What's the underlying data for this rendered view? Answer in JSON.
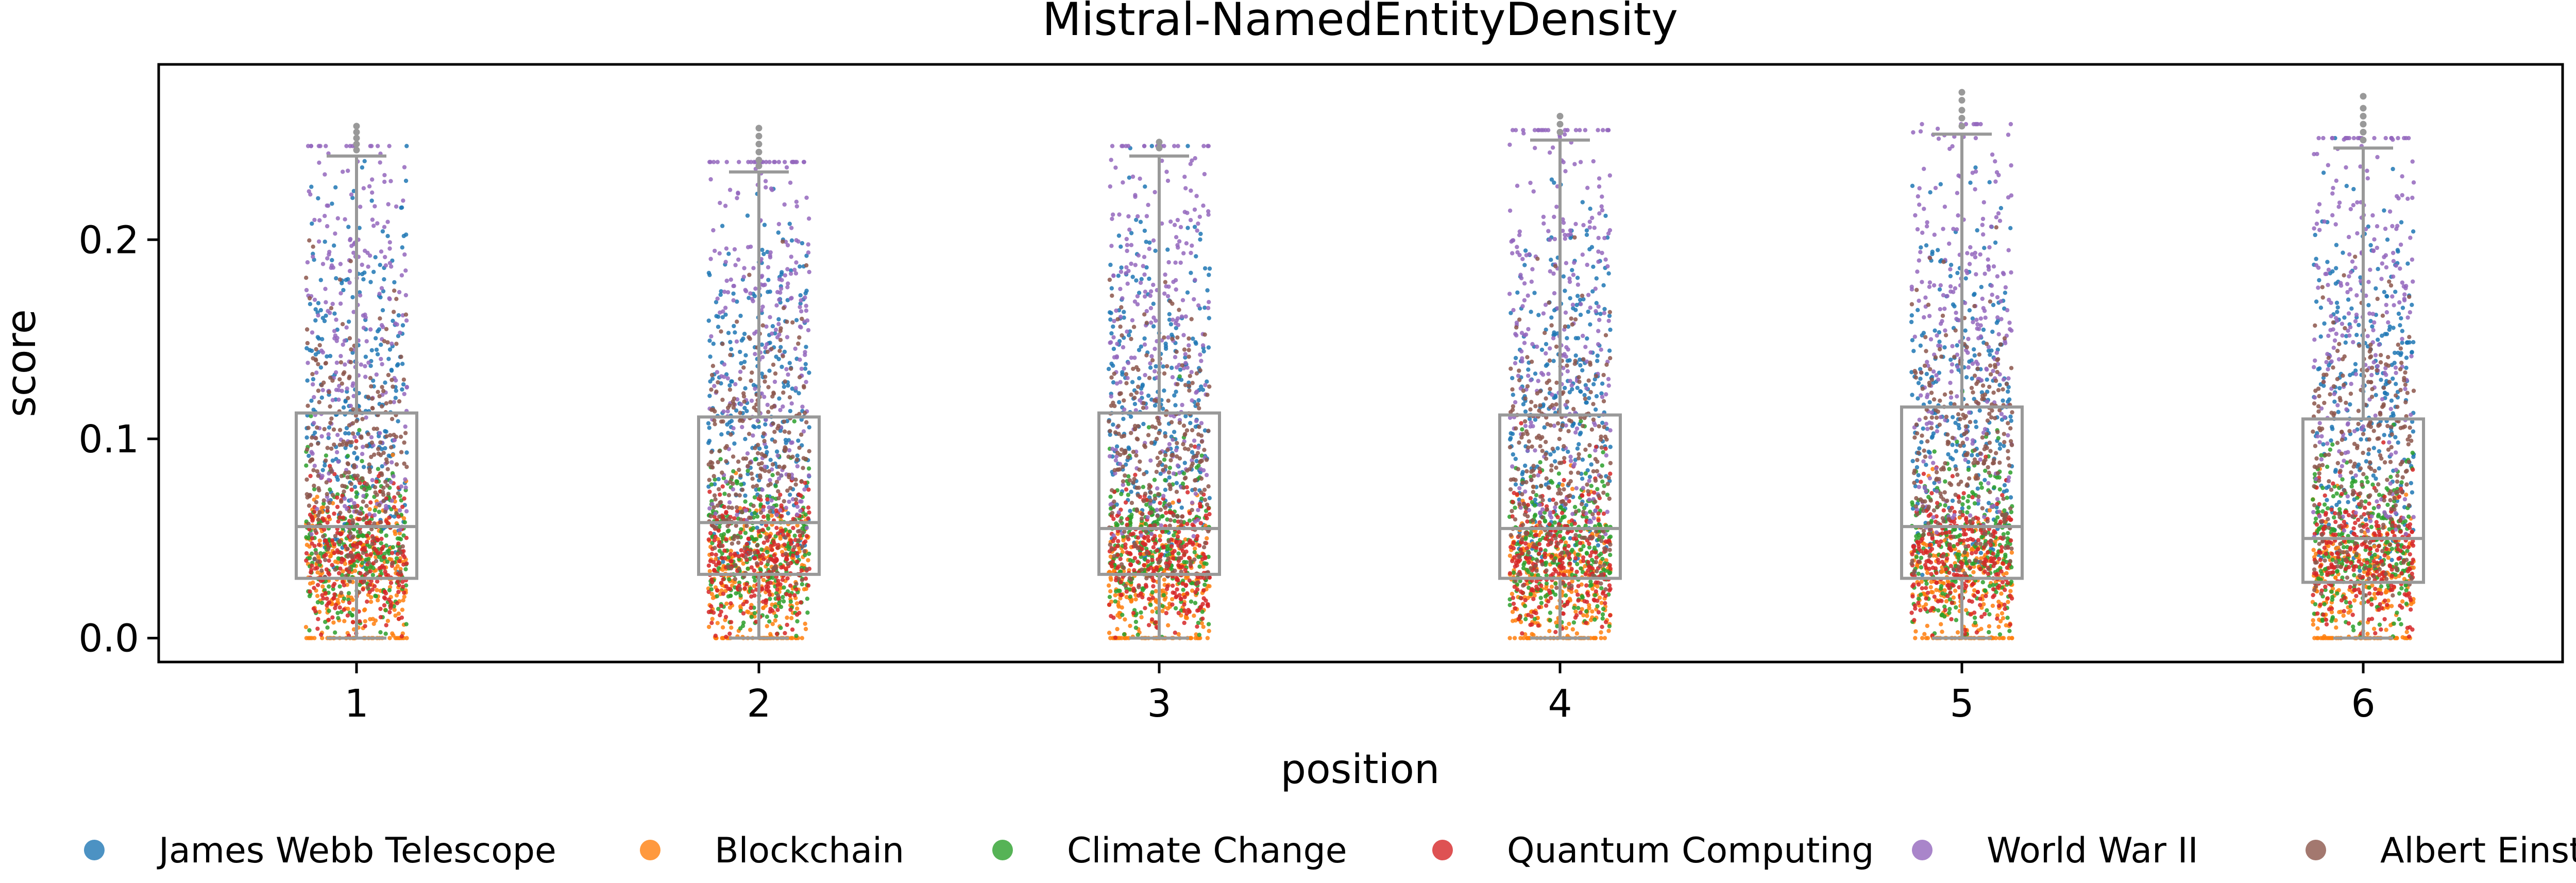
{
  "chart_data": {
    "type": "box",
    "title": "Mistral-NamedEntityDensity",
    "xlabel": "position",
    "ylabel": "score",
    "ylim": [
      -0.012,
      0.288
    ],
    "yticks": [
      0.0,
      0.1,
      0.2
    ],
    "ytick_labels": [
      "0.0",
      "0.1",
      "0.2"
    ],
    "categories": [
      "1",
      "2",
      "3",
      "4",
      "5",
      "6"
    ],
    "box_stats": [
      {
        "position": "1",
        "whisker_low": 0.0,
        "q1": 0.03,
        "median": 0.056,
        "q3": 0.113,
        "whisker_high": 0.242,
        "fliers": [
          0.245,
          0.248,
          0.251,
          0.254,
          0.257
        ]
      },
      {
        "position": "2",
        "whisker_low": 0.0,
        "q1": 0.032,
        "median": 0.058,
        "q3": 0.111,
        "whisker_high": 0.234,
        "fliers": [
          0.237,
          0.24,
          0.244,
          0.248,
          0.252,
          0.256
        ]
      },
      {
        "position": "3",
        "whisker_low": 0.0,
        "q1": 0.032,
        "median": 0.055,
        "q3": 0.113,
        "whisker_high": 0.242,
        "fliers": [
          0.246,
          0.249
        ]
      },
      {
        "position": "4",
        "whisker_low": 0.0,
        "q1": 0.03,
        "median": 0.055,
        "q3": 0.112,
        "whisker_high": 0.25,
        "fliers": [
          0.254,
          0.258,
          0.262
        ]
      },
      {
        "position": "5",
        "whisker_low": 0.0,
        "q1": 0.03,
        "median": 0.056,
        "q3": 0.116,
        "whisker_high": 0.253,
        "fliers": [
          0.257,
          0.261,
          0.265,
          0.27,
          0.274
        ]
      },
      {
        "position": "6",
        "whisker_low": 0.0,
        "q1": 0.028,
        "median": 0.05,
        "q3": 0.11,
        "whisker_high": 0.246,
        "fliers": [
          0.25,
          0.254,
          0.258,
          0.262,
          0.266,
          0.272
        ]
      }
    ],
    "strip_series": [
      {
        "name": "James Webb Telescope",
        "color": "#1f77b4",
        "typical_range": [
          0.04,
          0.2
        ]
      },
      {
        "name": "Blockchain",
        "color": "#ff7f0e",
        "typical_range": [
          0.0,
          0.06
        ]
      },
      {
        "name": "Climate Change",
        "color": "#2ca02c",
        "typical_range": [
          0.01,
          0.08
        ]
      },
      {
        "name": "Quantum Computing",
        "color": "#d62728",
        "typical_range": [
          0.01,
          0.07
        ]
      },
      {
        "name": "World War II",
        "color": "#9467bd",
        "typical_range": [
          0.06,
          0.26
        ]
      },
      {
        "name": "Albert Einstein",
        "color": "#8c564b",
        "typical_range": [
          0.03,
          0.15
        ]
      }
    ],
    "legend_position": "bottom",
    "grid": false
  }
}
